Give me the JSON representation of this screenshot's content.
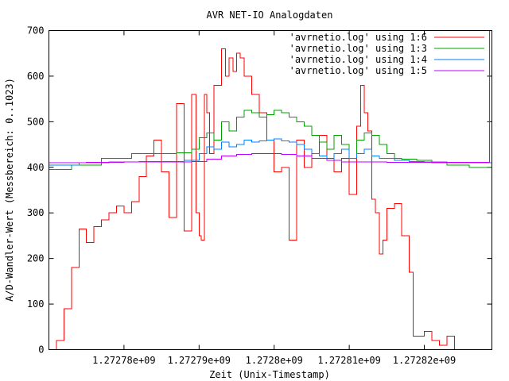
{
  "chart_data": {
    "type": "line",
    "title": "AVR NET-IO Analogdaten",
    "xlabel": "Zeit (Unix-Timestamp)",
    "ylabel": "A/D-Wandler-Wert (Messbereich: 0..1023)",
    "xlim": [
      1272770000,
      1272829000
    ],
    "ylim": [
      0,
      700
    ],
    "x_ticks": [
      {
        "value": 1272780000,
        "label": "1.27278e+09"
      },
      {
        "value": 1272790000,
        "label": "1.27279e+09"
      },
      {
        "value": 1272800000,
        "label": "1.2728e+09"
      },
      {
        "value": 1272810000,
        "label": "1.27281e+09"
      },
      {
        "value": 1272820000,
        "label": "1.27282e+09"
      }
    ],
    "y_ticks": [
      {
        "value": 0,
        "label": "0"
      },
      {
        "value": 100,
        "label": "100"
      },
      {
        "value": 200,
        "label": "200"
      },
      {
        "value": 300,
        "label": "300"
      },
      {
        "value": 400,
        "label": "400"
      },
      {
        "value": 500,
        "label": "500"
      },
      {
        "value": 600,
        "label": "600"
      },
      {
        "value": 700,
        "label": "700"
      }
    ],
    "grid": false,
    "legend_position": "top-right",
    "series": [
      {
        "name": "'avrnetio.log' using 1:6",
        "color": "#ff0000",
        "x": [
          1272770000,
          1272771000,
          1272772000,
          1272773000,
          1272774000,
          1272775000,
          1272776000,
          1272777000,
          1272778000,
          1272779000,
          1272780000,
          1272781000,
          1272782000,
          1272783000,
          1272784000,
          1272785000,
          1272786000,
          1272787000,
          1272788000,
          1272789000,
          1272789600,
          1272790000,
          1272790300,
          1272790700,
          1272791000,
          1272791400,
          1272792000,
          1272793000,
          1272793500,
          1272794000,
          1272794500,
          1272795000,
          1272795500,
          1272796000,
          1272797000,
          1272798000,
          1272799000,
          1272800000,
          1272801000,
          1272802000,
          1272803000,
          1272804000,
          1272805000,
          1272806000,
          1272807000,
          1272808000,
          1272809000,
          1272810000,
          1272811000,
          1272811500,
          1272812000,
          1272812500,
          1272813000,
          1272813500,
          1272814000,
          1272814500,
          1272815000,
          1272816000,
          1272817000,
          1272818000,
          1272818500,
          1272819000,
          1272820000,
          1272821000,
          1272822000,
          1272823000,
          1272824000,
          1272825000,
          1272826000,
          1272827000,
          1272828000,
          1272829000
        ],
        "values": [
          0,
          20,
          90,
          180,
          265,
          235,
          270,
          285,
          300,
          315,
          300,
          325,
          380,
          425,
          460,
          390,
          290,
          540,
          260,
          560,
          300,
          250,
          240,
          560,
          520,
          430,
          580,
          660,
          600,
          640,
          610,
          650,
          640,
          600,
          560,
          520,
          460,
          390,
          400,
          240,
          460,
          400,
          430,
          470,
          420,
          390,
          420,
          340,
          490,
          580,
          520,
          480,
          330,
          300,
          210,
          240,
          310,
          320,
          250,
          170,
          30,
          30,
          40,
          20,
          10,
          30,
          0,
          0,
          0,
          0,
          0,
          0
        ]
      },
      {
        "name": "'avrnetio.log' using 1:3",
        "color": "#00a000",
        "x": [
          1272770000,
          1272773000,
          1272777000,
          1272781000,
          1272785000,
          1272787000,
          1272789000,
          1272790000,
          1272791000,
          1272792000,
          1272793000,
          1272794000,
          1272795000,
          1272796000,
          1272797000,
          1272798000,
          1272799000,
          1272800000,
          1272801000,
          1272802000,
          1272803000,
          1272804000,
          1272805000,
          1272806000,
          1272807000,
          1272808000,
          1272809000,
          1272810000,
          1272811000,
          1272812000,
          1272813000,
          1272814000,
          1272815000,
          1272816000,
          1272817000,
          1272819000,
          1272821000,
          1272823000,
          1272826000,
          1272829000
        ],
        "values": [
          395,
          405,
          420,
          430,
          430,
          432,
          440,
          465,
          475,
          460,
          500,
          480,
          510,
          525,
          520,
          510,
          515,
          525,
          520,
          510,
          500,
          490,
          470,
          455,
          440,
          470,
          450,
          420,
          460,
          475,
          470,
          450,
          430,
          420,
          418,
          415,
          410,
          405,
          400,
          398
        ]
      },
      {
        "name": "'avrnetio.log' using 1:4",
        "color": "#0080ff",
        "x": [
          1272770000,
          1272774000,
          1272778000,
          1272782000,
          1272786000,
          1272788000,
          1272790000,
          1272791000,
          1272792000,
          1272793000,
          1272794000,
          1272795000,
          1272796000,
          1272797000,
          1272798000,
          1272799000,
          1272800000,
          1272801000,
          1272802000,
          1272803000,
          1272804000,
          1272805000,
          1272806000,
          1272807000,
          1272808000,
          1272809000,
          1272810000,
          1272811000,
          1272812000,
          1272813000,
          1272814000,
          1272816000,
          1272818000,
          1272820000,
          1272823000,
          1272826000,
          1272829000
        ],
        "values": [
          405,
          410,
          412,
          413,
          413,
          415,
          430,
          445,
          440,
          455,
          445,
          450,
          460,
          455,
          458,
          460,
          462,
          458,
          455,
          450,
          440,
          430,
          425,
          415,
          430,
          440,
          420,
          430,
          440,
          425,
          420,
          415,
          413,
          412,
          410,
          410,
          408
        ]
      },
      {
        "name": "'avrnetio.log' using 1:5",
        "color": "#c000ff",
        "x": [
          1272770000,
          1272775000,
          1272780000,
          1272785000,
          1272789000,
          1272791000,
          1272793000,
          1272795000,
          1272797000,
          1272799000,
          1272801000,
          1272803000,
          1272805000,
          1272807000,
          1272809000,
          1272811000,
          1272813000,
          1272815000,
          1272818000,
          1272822000,
          1272826000,
          1272828600,
          1272828700
        ],
        "values": [
          410,
          411,
          412,
          412,
          413,
          418,
          425,
          428,
          430,
          430,
          428,
          425,
          420,
          415,
          412,
          412,
          412,
          411,
          411,
          411,
          411,
          411,
          700
        ]
      }
    ]
  }
}
